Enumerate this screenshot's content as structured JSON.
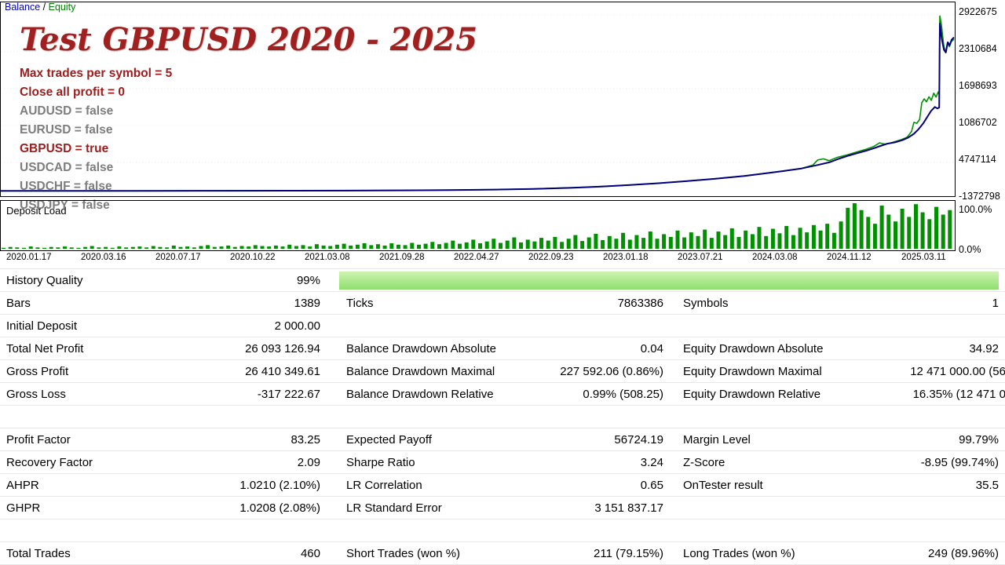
{
  "legend": {
    "balance": "Balance",
    "sep": " / ",
    "equity": "Equity"
  },
  "overlay": {
    "title": "Test GBPUSD 2020 - 2025",
    "params": [
      {
        "text": "Max trades per symbol = 5",
        "highlight": true
      },
      {
        "text": "Close all profit = 0",
        "highlight": true
      },
      {
        "text": "AUDUSD = false",
        "highlight": false
      },
      {
        "text": "EURUSD = false",
        "highlight": false
      },
      {
        "text": "GBPUSD = true",
        "highlight": true
      },
      {
        "text": "USDCAD = false",
        "highlight": false
      },
      {
        "text": "USDCHF = false",
        "highlight": false
      },
      {
        "text": "USDJPY = false",
        "highlight": false
      }
    ]
  },
  "colors": {
    "balance_line": "#00007a",
    "equity_line": "#009000",
    "deposit_bars": "#009000",
    "title_red": "#a02020",
    "param_red": "#9e1c1c",
    "param_gray": "#7d7d7d",
    "legend_blue": "#0000c8",
    "legend_green": "#008000",
    "quality_bar_green": "#8edf6e"
  },
  "chart_data": {
    "type": "line",
    "title": "Balance / Equity curve",
    "legend_position": "top-left",
    "grid": "faint-horizontal",
    "ylim": [
      -137279.8,
      2922675
    ],
    "y_axis_labels": [
      "2922675",
      "2310684",
      "1698693",
      "1086702",
      "4747114",
      "-1372798"
    ],
    "x_axis_labels": [
      "2020.01.17",
      "2020.03.16",
      "2020.07.17",
      "2020.10.22",
      "2021.03.08",
      "2021.09.28",
      "2022.04.27",
      "2022.09.23",
      "2023.01.18",
      "2023.07.21",
      "2024.03.08",
      "2024.11.12",
      "2025.03.11"
    ],
    "series": [
      {
        "name": "Equity",
        "color": "#009000",
        "width": 1.6,
        "points": [
          [
            0,
            2000
          ],
          [
            0.08,
            2500
          ],
          [
            0.16,
            3200
          ],
          [
            0.24,
            4200
          ],
          [
            0.3,
            5500
          ],
          [
            0.36,
            7500
          ],
          [
            0.42,
            11000
          ],
          [
            0.47,
            16000
          ],
          [
            0.52,
            24000
          ],
          [
            0.56,
            36000
          ],
          [
            0.6,
            55000
          ],
          [
            0.63,
            75000
          ],
          [
            0.66,
            100000
          ],
          [
            0.69,
            130000
          ],
          [
            0.72,
            165000
          ],
          [
            0.75,
            205000
          ],
          [
            0.78,
            250000
          ],
          [
            0.8,
            290000
          ],
          [
            0.82,
            330000
          ],
          [
            0.84,
            375000
          ],
          [
            0.852,
            430000
          ],
          [
            0.857,
            515000
          ],
          [
            0.863,
            535000
          ],
          [
            0.869,
            505000
          ],
          [
            0.878,
            560000
          ],
          [
            0.888,
            600000
          ],
          [
            0.898,
            648000
          ],
          [
            0.908,
            695000
          ],
          [
            0.916,
            740000
          ],
          [
            0.922,
            800000
          ],
          [
            0.927,
            780000
          ],
          [
            0.934,
            800000
          ],
          [
            0.944,
            848000
          ],
          [
            0.951,
            895000
          ],
          [
            0.9555,
            990000
          ],
          [
            0.958,
            1140000
          ],
          [
            0.961,
            1125000
          ],
          [
            0.964,
            1190000
          ],
          [
            0.9662,
            1465000
          ],
          [
            0.9688,
            1530000
          ],
          [
            0.9712,
            1480000
          ],
          [
            0.9738,
            1565000
          ],
          [
            0.9762,
            1505000
          ],
          [
            0.9788,
            1625000
          ],
          [
            0.9812,
            1560000
          ],
          [
            0.9835,
            1645000
          ],
          [
            0.9845,
            1600000
          ],
          [
            0.9852,
            2905000
          ],
          [
            0.9868,
            2760000
          ],
          [
            0.9892,
            2420000
          ],
          [
            0.9912,
            2295000
          ],
          [
            0.9932,
            2455000
          ],
          [
            0.9952,
            2395000
          ],
          [
            0.9972,
            2480000
          ],
          [
            1.0,
            2520000
          ]
        ]
      },
      {
        "name": "Balance",
        "color": "#00007a",
        "width": 2,
        "points": [
          [
            0,
            2000
          ],
          [
            0.08,
            2500
          ],
          [
            0.16,
            3200
          ],
          [
            0.24,
            4200
          ],
          [
            0.3,
            5500
          ],
          [
            0.36,
            7500
          ],
          [
            0.42,
            11000
          ],
          [
            0.47,
            16000
          ],
          [
            0.52,
            24000
          ],
          [
            0.56,
            36000
          ],
          [
            0.6,
            55000
          ],
          [
            0.63,
            75000
          ],
          [
            0.66,
            100000
          ],
          [
            0.69,
            130000
          ],
          [
            0.72,
            165000
          ],
          [
            0.75,
            205000
          ],
          [
            0.78,
            250000
          ],
          [
            0.8,
            290000
          ],
          [
            0.82,
            330000
          ],
          [
            0.84,
            375000
          ],
          [
            0.855,
            425000
          ],
          [
            0.87,
            480000
          ],
          [
            0.88,
            540000
          ],
          [
            0.89,
            590000
          ],
          [
            0.9,
            635000
          ],
          [
            0.908,
            670000
          ],
          [
            0.916,
            710000
          ],
          [
            0.924,
            755000
          ],
          [
            0.93,
            785000
          ],
          [
            0.938,
            808000
          ],
          [
            0.946,
            845000
          ],
          [
            0.952,
            888000
          ],
          [
            0.958,
            950000
          ],
          [
            0.963,
            1030000
          ],
          [
            0.968,
            1130000
          ],
          [
            0.972,
            1230000
          ],
          [
            0.976,
            1330000
          ],
          [
            0.98,
            1395000
          ],
          [
            0.9825,
            1370000
          ],
          [
            0.9845,
            1385000
          ],
          [
            0.9852,
            2780000
          ],
          [
            0.9872,
            2520000
          ],
          [
            0.9895,
            2340000
          ],
          [
            0.9915,
            2300000
          ],
          [
            0.9935,
            2470000
          ],
          [
            0.9955,
            2420000
          ],
          [
            0.9975,
            2510000
          ],
          [
            1.0,
            2550000
          ]
        ]
      }
    ]
  },
  "deposit_chart": {
    "type": "bar",
    "label": "Deposit Load",
    "y_max_label": "100.0%",
    "y_min_label": "0.0%",
    "bar_heights_pct": [
      2,
      4,
      3,
      2,
      5,
      3,
      2,
      4,
      3,
      5,
      3,
      2,
      4,
      6,
      3,
      4,
      2,
      5,
      3,
      4,
      5,
      3,
      6,
      4,
      3,
      7,
      4,
      5,
      3,
      6,
      8,
      4,
      5,
      7,
      4,
      6,
      5,
      8,
      6,
      5,
      7,
      5,
      9,
      6,
      8,
      5,
      10,
      7,
      6,
      9,
      11,
      7,
      9,
      12,
      8,
      10,
      7,
      12,
      9,
      8,
      13,
      9,
      11,
      15,
      10,
      13,
      18,
      11,
      14,
      20,
      12,
      16,
      22,
      13,
      18,
      25,
      14,
      20,
      16,
      24,
      18,
      26,
      15,
      22,
      30,
      17,
      25,
      33,
      19,
      28,
      22,
      35,
      20,
      30,
      24,
      38,
      22,
      32,
      26,
      40,
      25,
      36,
      28,
      42,
      24,
      38,
      30,
      45,
      26,
      40,
      32,
      48,
      28,
      44,
      34,
      50,
      30,
      46,
      36,
      52,
      40,
      55,
      35,
      60,
      90,
      100,
      85,
      70,
      55,
      95,
      75,
      60,
      88,
      70,
      98,
      80,
      65,
      92,
      75,
      85
    ]
  },
  "stats": {
    "history_quality": {
      "label": "History Quality",
      "value": "99%",
      "percent": 99
    },
    "rows": [
      {
        "cells": [
          {
            "l": "Bars",
            "v": "1389"
          },
          {
            "l": "Ticks",
            "v": "7863386"
          },
          {
            "l": "Symbols",
            "v": "1"
          }
        ]
      },
      {
        "cells": [
          {
            "l": "Initial Deposit",
            "v": "2 000.00"
          },
          null,
          null
        ]
      },
      {
        "cells": [
          {
            "l": "Total Net Profit",
            "v": "26 093 126.94"
          },
          {
            "l": "Balance Drawdown Absolute",
            "v": "0.04"
          },
          {
            "l": "Equity Drawdown Absolute",
            "v": "34.92"
          }
        ]
      },
      {
        "cells": [
          {
            "l": "Gross Profit",
            "v": "26 410 349.61"
          },
          {
            "l": "Balance Drawdown Maximal",
            "v": "227 592.06 (0.86%)"
          },
          {
            "l": "Equity Drawdown Maximal",
            "v": "12 471 000.00 (56",
            "clip": true
          }
        ]
      },
      {
        "cells": [
          {
            "l": "Gross Loss",
            "v": "-317 222.67"
          },
          {
            "l": "Balance Drawdown Relative",
            "v": "0.99% (508.25)"
          },
          {
            "l": "Equity Drawdown Relative",
            "v": "16.35% (12 471 0",
            "clip": true
          }
        ]
      },
      {
        "cells": [
          null,
          null,
          null
        ]
      },
      {
        "cells": [
          {
            "l": "Profit Factor",
            "v": "83.25"
          },
          {
            "l": "Expected Payoff",
            "v": "56724.19"
          },
          {
            "l": "Margin Level",
            "v": "99.79%"
          }
        ]
      },
      {
        "cells": [
          {
            "l": "Recovery Factor",
            "v": "2.09"
          },
          {
            "l": "Sharpe Ratio",
            "v": "3.24"
          },
          {
            "l": "Z-Score",
            "v": "-8.95 (99.74%)"
          }
        ]
      },
      {
        "cells": [
          {
            "l": "AHPR",
            "v": "1.0210 (2.10%)"
          },
          {
            "l": "LR Correlation",
            "v": "0.65"
          },
          {
            "l": "OnTester result",
            "v": "35.5"
          }
        ]
      },
      {
        "cells": [
          {
            "l": "GHPR",
            "v": "1.0208 (2.08%)"
          },
          {
            "l": "LR Standard Error",
            "v": "3 151 837.17"
          },
          null
        ]
      },
      {
        "cells": [
          null,
          null,
          null
        ]
      },
      {
        "cells": [
          {
            "l": "Total Trades",
            "v": "460"
          },
          {
            "l": "Short Trades (won %)",
            "v": "211 (79.15%)"
          },
          {
            "l": "Long Trades (won %)",
            "v": "249 (89.96%)"
          }
        ]
      }
    ]
  }
}
